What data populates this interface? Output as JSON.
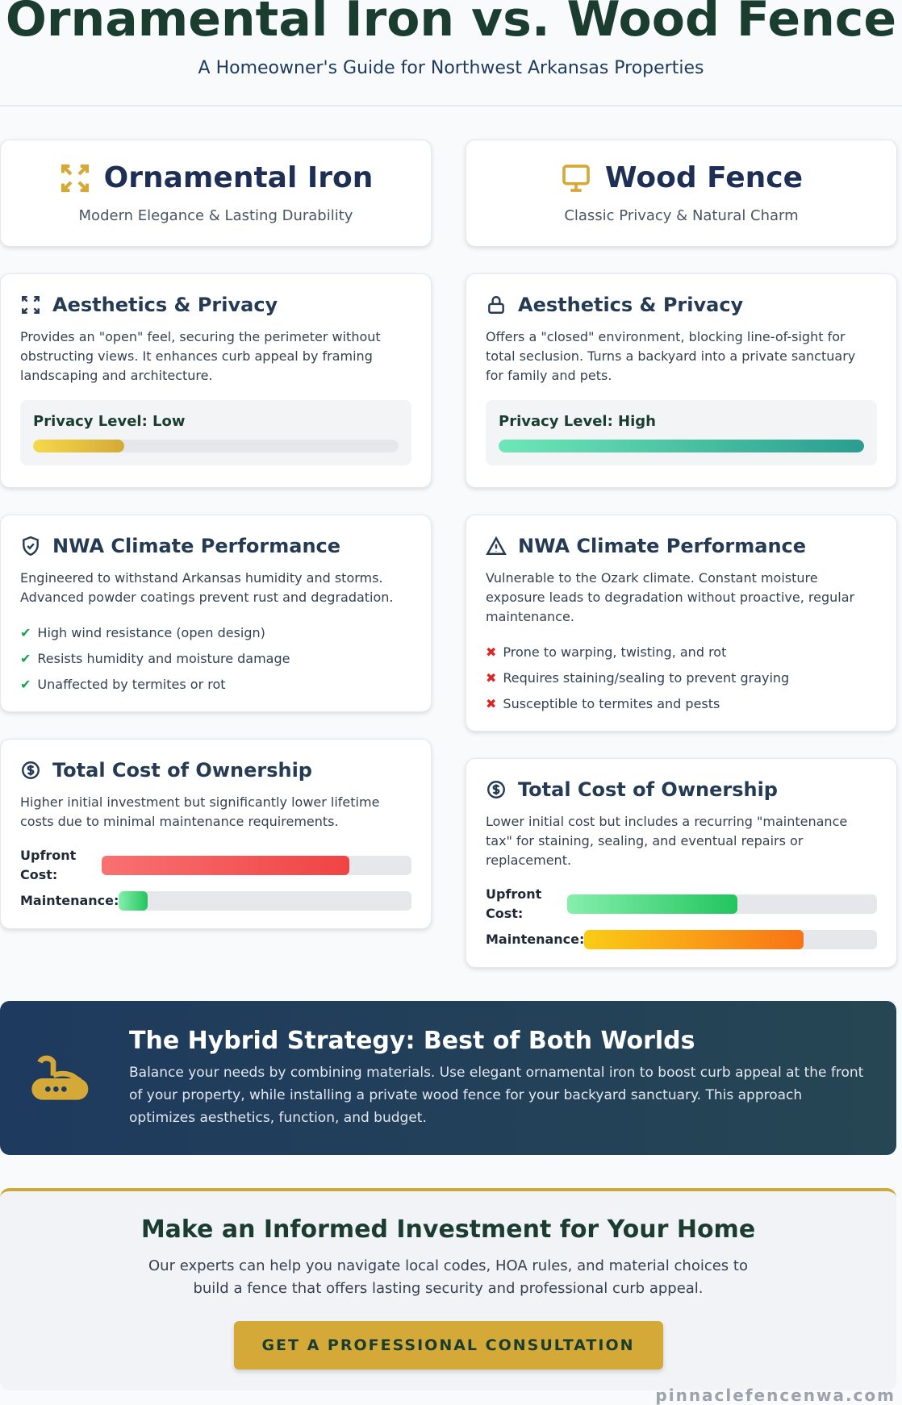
{
  "header": {
    "title": "Ornamental Iron vs. Wood Fence",
    "subtitle": "A Homeowner's Guide for Northwest Arkansas Properties"
  },
  "columns": [
    {
      "title": "Ornamental Iron",
      "tagline": "Modern Elegance & Lasting Durability",
      "aesthetics": {
        "heading": "Aesthetics & Privacy",
        "text": "Provides an \"open\" feel, securing the perimeter without obstructing views. It enhances curb appeal by framing landscaping and architecture.",
        "privacy_label": "Privacy Level: Low",
        "privacy_value": 25
      },
      "climate": {
        "heading": "NWA Climate Performance",
        "text": "Engineered to withstand Arkansas humidity and storms. Advanced powder coatings prevent rust and degradation.",
        "items": [
          "High wind resistance (open design)",
          "Resists humidity and moisture damage",
          "Unaffected by termites or rot"
        ]
      },
      "cost": {
        "heading": "Total Cost of Ownership",
        "text": "Higher initial investment but significantly lower lifetime costs due to minimal maintenance requirements.",
        "upfront_label": "Upfront Cost:",
        "upfront_value": 80,
        "maintenance_label": "Maintenance:",
        "maintenance_value": 10
      }
    },
    {
      "title": "Wood Fence",
      "tagline": "Classic Privacy & Natural Charm",
      "aesthetics": {
        "heading": "Aesthetics & Privacy",
        "text": "Offers a \"closed\" environment, blocking line-of-sight for total seclusion. Turns a backyard into a private sanctuary for family and pets.",
        "privacy_label": "Privacy Level: High",
        "privacy_value": 100
      },
      "climate": {
        "heading": "NWA Climate Performance",
        "text": "Vulnerable to the Ozark climate. Constant moisture exposure leads to degradation without proactive, regular maintenance.",
        "items": [
          "Prone to warping, twisting, and rot",
          "Requires staining/sealing to prevent graying",
          "Susceptible to termites and pests"
        ]
      },
      "cost": {
        "heading": "Total Cost of Ownership",
        "text": "Lower initial cost but includes a recurring \"maintenance tax\" for staining, sealing, and eventual repairs or replacement.",
        "upfront_label": "Upfront Cost:",
        "upfront_value": 55,
        "maintenance_label": "Maintenance:",
        "maintenance_value": 75
      }
    }
  ],
  "hybrid": {
    "title": "The Hybrid Strategy: Best of Both Worlds",
    "text": "Balance your needs by combining materials. Use elegant ornamental iron to boost curb appeal at the front of your property, while installing a private wood fence for your backyard sanctuary. This approach optimizes aesthetics, function, and budget."
  },
  "cta": {
    "title": "Make an Informed Investment for Your Home",
    "text": "Our experts can help you navigate local codes, HOA rules, and material choices to build a fence that offers lasting security and professional curb appeal.",
    "button": "GET A PROFESSIONAL CONSULTATION"
  },
  "footer": "pinnaclefencenwa.com"
}
